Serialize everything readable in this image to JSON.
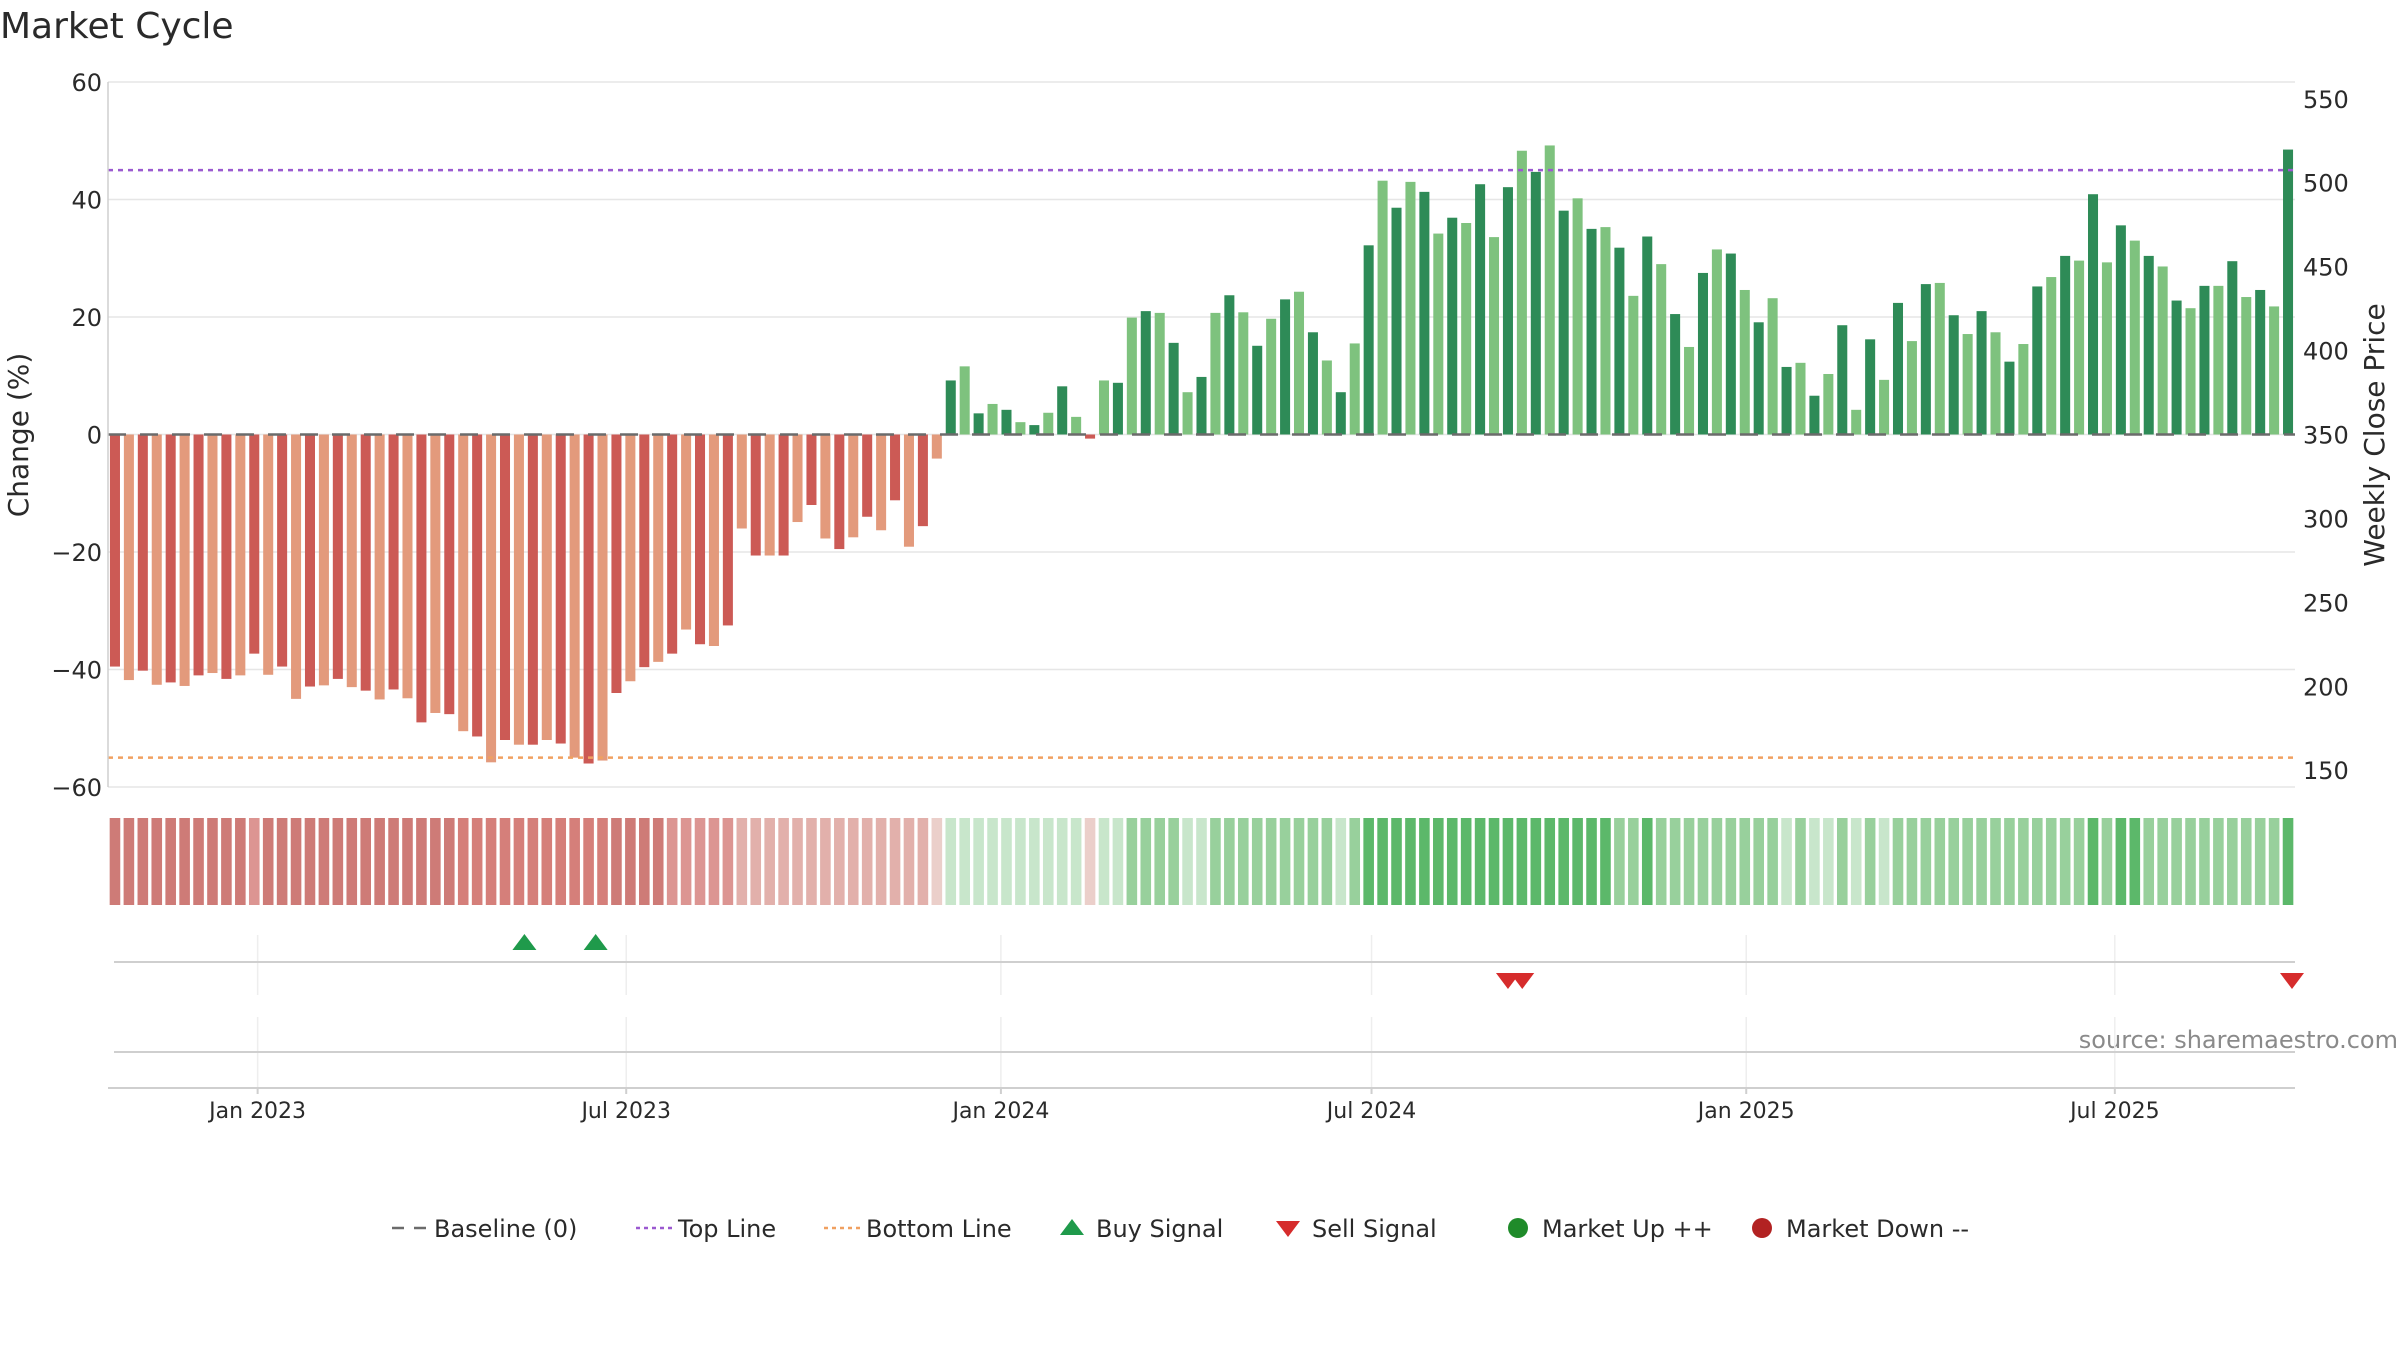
{
  "chart_data": {
    "type": "bar",
    "title": "Market Cycle",
    "ylabel": "Change (%)",
    "y2label": "Weekly Close Price",
    "ylim": [
      -60,
      60
    ],
    "y2lim": [
      140,
      560
    ],
    "yticks": [
      60,
      40,
      20,
      0,
      -20,
      -40,
      -60
    ],
    "y2ticks": [
      550,
      500,
      450,
      400,
      350,
      300,
      250,
      200,
      150
    ],
    "x_start": "2022-10-21",
    "x_end": "2025-09-26",
    "x_step_days": 7,
    "xtick_dates": [
      "2023-01-01",
      "2023-07-01",
      "2024-01-01",
      "2024-07-01",
      "2025-01-01",
      "2025-07-01"
    ],
    "xtick_labels": [
      "Jan 2023",
      "Jul 2023",
      "Jan 2024",
      "Jul 2024",
      "Jan 2025",
      "Jul 2025"
    ],
    "grid": true,
    "top_line": 45,
    "bottom_line": -55,
    "baseline": 0,
    "series": [
      {
        "name": "Change (%)",
        "values": [
          -39.5,
          -41.8,
          -40.2,
          -42.6,
          -42.2,
          -42.8,
          -41.0,
          -40.6,
          -41.6,
          -41.0,
          -37.3,
          -40.9,
          -39.5,
          -45.0,
          -42.9,
          -42.7,
          -41.6,
          -43.0,
          -43.6,
          -45.1,
          -43.4,
          -44.9,
          -49.0,
          -47.4,
          -47.6,
          -50.5,
          -51.4,
          -55.8,
          -52.0,
          -52.8,
          -52.8,
          -52.0,
          -52.6,
          -55.0,
          -56.0,
          -55.5,
          -44.0,
          -42.0,
          -39.6,
          -38.7,
          -37.3,
          -33.2,
          -35.7,
          -36.0,
          -32.5,
          -16.0,
          -20.6,
          -20.6,
          -20.6,
          -14.9,
          -12.0,
          -17.7,
          -19.5,
          -17.5,
          -14.0,
          -16.3,
          -11.2,
          -19.1,
          -15.6,
          -4.1,
          9.2,
          11.6,
          3.6,
          5.2,
          4.2,
          2.1,
          1.6,
          3.7,
          8.2,
          3.0,
          -0.7,
          9.2,
          8.8,
          19.9,
          21.0,
          20.7,
          15.6,
          7.2,
          9.8,
          20.7,
          23.7,
          20.8,
          15.1,
          19.7,
          23.0,
          24.3,
          17.4,
          12.6,
          7.2,
          15.5,
          32.2,
          43.2,
          38.6,
          43.0,
          41.3,
          34.2,
          36.9,
          36.0,
          42.6,
          33.6,
          42.1,
          48.3,
          44.7,
          49.2,
          38.1,
          40.2,
          35.0,
          35.3,
          31.8,
          23.6,
          33.7,
          29.0,
          20.5,
          14.9,
          27.5,
          31.5,
          30.8,
          24.6,
          19.1,
          23.2,
          11.5,
          12.2,
          6.6,
          10.3,
          18.6,
          4.2,
          16.2,
          9.3,
          22.4,
          15.9,
          25.6,
          25.8,
          20.3,
          17.1,
          21.0,
          17.4,
          12.4,
          15.4,
          25.2,
          26.8,
          30.4,
          29.6,
          40.9,
          29.3,
          35.6,
          33.0,
          30.4,
          28.6,
          22.8,
          21.5,
          25.3,
          25.3,
          29.5,
          23.4,
          24.6,
          21.8,
          48.5
        ],
        "colors": [
          "#cc5a55",
          "#e39a7c",
          "#7ec27e",
          "#2e8b57"
        ]
      }
    ],
    "heat_strip": {
      "colors": [
        "#ce7b77",
        "#d57f7a",
        "#dc9592",
        "#e2b0ab",
        "#ebcfca",
        "#c8e6cb",
        "#98d09c",
        "#5cb86a"
      ]
    },
    "signals": {
      "buy_dates": [
        "2023-05-12",
        "2023-06-16"
      ],
      "sell_dates": [
        "2024-09-06",
        "2024-09-13",
        "2025-09-26"
      ],
      "buy_color": "#1f9a4b",
      "sell_color": "#d62c2c"
    },
    "legend": {
      "placement": "bottom-center",
      "items": [
        {
          "label": "Baseline (0)",
          "kind": "dash",
          "color": "#6b6b6b"
        },
        {
          "label": "Top Line",
          "kind": "dot",
          "color": "#9b59d0"
        },
        {
          "label": "Bottom Line",
          "kind": "dot",
          "color": "#f0a060"
        },
        {
          "label": "Buy Signal",
          "kind": "tri-up",
          "color": "#1f9a4b"
        },
        {
          "label": "Sell Signal",
          "kind": "tri-down",
          "color": "#d62c2c"
        },
        {
          "label": "Market Up ++",
          "kind": "circle",
          "color": "#1f8b2a"
        },
        {
          "label": "Market Down --",
          "kind": "circle",
          "color": "#b22222"
        }
      ]
    },
    "source": "source: sharemaestro.com"
  }
}
